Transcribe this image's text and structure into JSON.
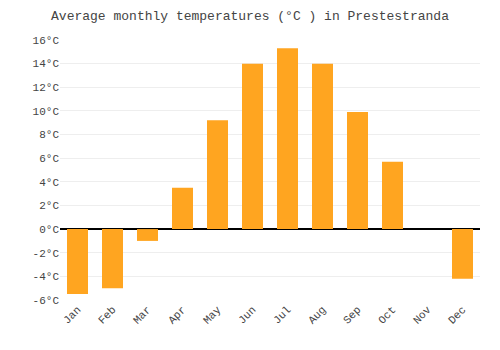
{
  "chart_data": {
    "type": "bar",
    "title": "Average monthly temperatures (°C ) in Prestestranda",
    "categories": [
      "Jan",
      "Feb",
      "Mar",
      "Apr",
      "May",
      "Jun",
      "Jul",
      "Aug",
      "Sep",
      "Oct",
      "Nov",
      "Dec"
    ],
    "values": [
      -5.5,
      -5.0,
      -1.0,
      3.5,
      9.2,
      14.0,
      15.3,
      14.0,
      9.9,
      5.7,
      0.0,
      -4.2
    ],
    "color": "#FFA520",
    "ylim": [
      -6,
      16
    ],
    "yticks": [
      {
        "value": -6,
        "label": "-6°C"
      },
      {
        "value": -4,
        "label": "-4°C"
      },
      {
        "value": -2,
        "label": "-2°C"
      },
      {
        "value": 0,
        "label": "0°C"
      },
      {
        "value": 2,
        "label": "2°C"
      },
      {
        "value": 4,
        "label": "4°C"
      },
      {
        "value": 6,
        "label": "6°C"
      },
      {
        "value": 8,
        "label": "8°C"
      },
      {
        "value": 10,
        "label": "10°C"
      },
      {
        "value": 12,
        "label": "12°C"
      },
      {
        "value": 14,
        "label": "14°C"
      },
      {
        "value": 16,
        "label": "16°C"
      }
    ],
    "grid": true
  }
}
